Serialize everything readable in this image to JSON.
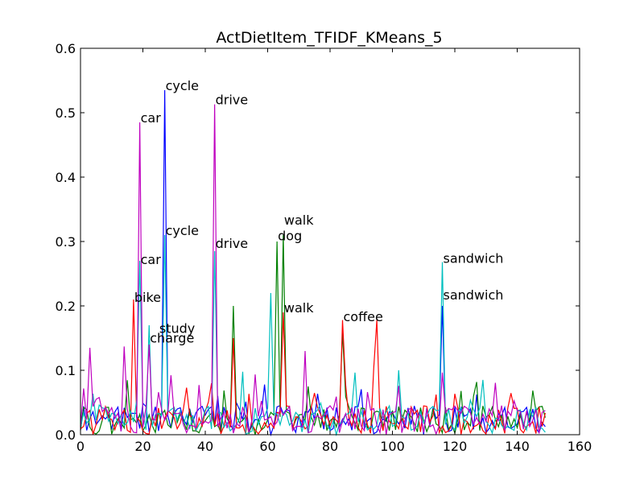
{
  "chart_data": {
    "type": "line",
    "title": "ActDietItem_TFIDF_KMeans_5",
    "xlabel": "",
    "ylabel": "",
    "xlim": [
      0,
      160
    ],
    "ylim": [
      0,
      0.6
    ],
    "xticks": [
      0,
      20,
      40,
      60,
      80,
      100,
      120,
      140,
      160
    ],
    "yticks": [
      0.0,
      0.1,
      0.2,
      0.3,
      0.4,
      0.5,
      0.6
    ],
    "grid": false,
    "legend": "none",
    "series_colors": [
      "#0000ff",
      "#008000",
      "#ff0000",
      "#00bfbf",
      "#bf00bf"
    ],
    "peaks": [
      {
        "series": 0,
        "x": 27,
        "y": 0.535
      },
      {
        "series": 0,
        "x": 116,
        "y": 0.2
      },
      {
        "series": 1,
        "x": 63,
        "y": 0.3
      },
      {
        "series": 1,
        "x": 65,
        "y": 0.31
      },
      {
        "series": 1,
        "x": 49,
        "y": 0.2
      },
      {
        "series": 1,
        "x": 84,
        "y": 0.16
      },
      {
        "series": 2,
        "x": 17,
        "y": 0.21
      },
      {
        "series": 2,
        "x": 84,
        "y": 0.178
      },
      {
        "series": 2,
        "x": 95,
        "y": 0.178
      },
      {
        "series": 2,
        "x": 65,
        "y": 0.19
      },
      {
        "series": 2,
        "x": 49,
        "y": 0.15
      },
      {
        "series": 3,
        "x": 27,
        "y": 0.31
      },
      {
        "series": 3,
        "x": 19,
        "y": 0.27
      },
      {
        "series": 3,
        "x": 116,
        "y": 0.268
      },
      {
        "series": 3,
        "x": 61,
        "y": 0.22
      },
      {
        "series": 3,
        "x": 22,
        "y": 0.17
      },
      {
        "series": 3,
        "x": 43,
        "y": 0.285
      },
      {
        "series": 4,
        "x": 19,
        "y": 0.485
      },
      {
        "series": 4,
        "x": 43,
        "y": 0.513
      },
      {
        "series": 4,
        "x": 3,
        "y": 0.135
      },
      {
        "series": 4,
        "x": 14,
        "y": 0.137
      },
      {
        "series": 4,
        "x": 72,
        "y": 0.13
      },
      {
        "series": 4,
        "x": 22,
        "y": 0.14
      }
    ],
    "annotations": [
      {
        "text": "cycle",
        "x": 27,
        "y": 0.535
      },
      {
        "text": "car",
        "x": 19,
        "y": 0.485
      },
      {
        "text": "drive",
        "x": 43,
        "y": 0.513
      },
      {
        "text": "cycle",
        "x": 27,
        "y": 0.31
      },
      {
        "text": "car",
        "x": 19,
        "y": 0.265
      },
      {
        "text": "drive",
        "x": 43,
        "y": 0.29
      },
      {
        "text": "walk",
        "x": 65,
        "y": 0.326
      },
      {
        "text": "dog",
        "x": 63,
        "y": 0.302
      },
      {
        "text": "bike",
        "x": 17,
        "y": 0.206
      },
      {
        "text": "study",
        "x": 25,
        "y": 0.158
      },
      {
        "text": "charge",
        "x": 22,
        "y": 0.143
      },
      {
        "text": "walk",
        "x": 65,
        "y": 0.19
      },
      {
        "text": "coffee",
        "x": 84,
        "y": 0.176
      },
      {
        "text": "sandwich",
        "x": 116,
        "y": 0.267
      },
      {
        "text": "sandwich",
        "x": 116,
        "y": 0.21
      }
    ]
  }
}
